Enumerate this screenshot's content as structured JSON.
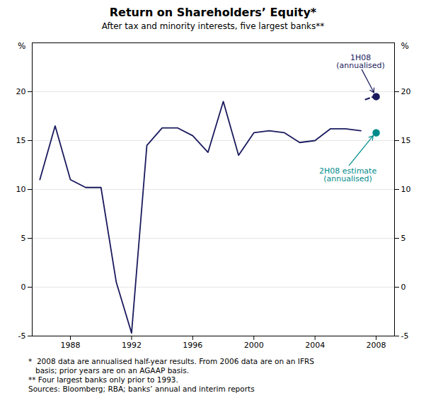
{
  "chart_data": {
    "type": "line",
    "title": "Return on Shareholders’ Equity*",
    "subtitle": "After tax and minority interests, five largest banks**",
    "footnote": "*  2008 data are annualised half-year results. From 2006 data are on an IFRS\n   basis; prior years are on an AGAAP basis.\n** Four largest banks only prior to 1993.\nSources: Bloomberg; RBA; banks’ annual and interim reports",
    "x": [
      1986,
      1987,
      1988,
      1989,
      1990,
      1991,
      1992,
      1993,
      1994,
      1995,
      1996,
      1997,
      1998,
      1999,
      2000,
      2001,
      2002,
      2003,
      2004,
      2005,
      2006,
      2007
    ],
    "values": [
      11.0,
      16.5,
      11.0,
      10.2,
      10.2,
      0.5,
      -4.7,
      14.5,
      16.3,
      16.3,
      15.5,
      13.8,
      19.0,
      13.5,
      15.8,
      16.0,
      15.8,
      14.8,
      15.0,
      16.2,
      16.2,
      16.0
    ],
    "color": "#1a1a5e",
    "dashed": {
      "x": [
        2007.3,
        2007.85
      ],
      "values": [
        19.2,
        19.5
      ],
      "color": "#1a1a5e",
      "line_style": "dashed"
    },
    "points": [
      {
        "x": 2008.0,
        "value": 19.5,
        "color": "#1a1a5e",
        "marker": "circle",
        "annotation": "1H08\n(annualised)"
      },
      {
        "x": 2008.0,
        "value": 15.8,
        "color": "#008B8B",
        "marker": "circle",
        "annotation": "2H08 estimate\n(annualised)"
      }
    ],
    "xlim": [
      1985.5,
      2009.2
    ],
    "xticks": [
      1988,
      1992,
      1996,
      2000,
      2004,
      2008
    ],
    "ylim": [
      -5,
      25
    ],
    "yticks": [
      -5,
      0,
      5,
      10,
      15,
      20
    ],
    "y2lim": [
      -5,
      25
    ],
    "y2ticks": [
      -5,
      0,
      5,
      10,
      15,
      20
    ],
    "ylabel": "%",
    "y2label": "%",
    "grid": "y"
  }
}
